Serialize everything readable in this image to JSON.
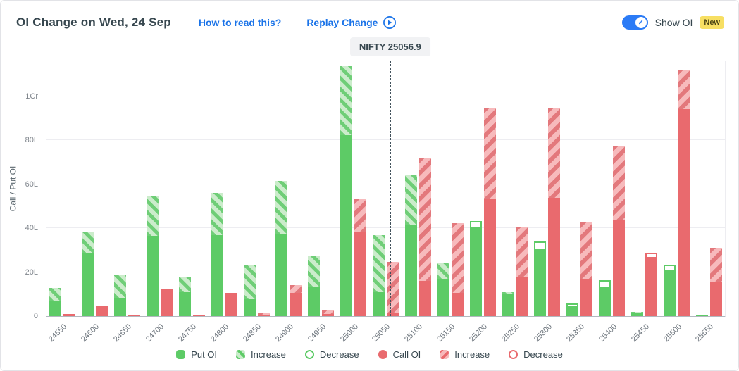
{
  "header": {
    "title": "OI Change on Wed, 24 Sep",
    "how_to_link": "How to read this?",
    "replay_label": "Replay Change",
    "show_oi_label": "Show OI",
    "new_badge": "New"
  },
  "colors": {
    "put_green": "#5dcb66",
    "put_green_light": "#cbeccb",
    "call_red": "#e96a6e",
    "call_red_light": "#f7babc",
    "link_blue": "#1a73e8",
    "toggle_blue": "#2b7bf6",
    "badge_yellow": "#f7df63",
    "grid_gray": "#ededf1"
  },
  "legend": {
    "items": [
      {
        "label": "Put OI",
        "swatch": "put-solid"
      },
      {
        "label": "Increase",
        "swatch": "put-inc"
      },
      {
        "label": "Decrease",
        "swatch": "put-dec"
      },
      {
        "label": "Call OI",
        "swatch": "call-solid"
      },
      {
        "label": "Increase",
        "swatch": "call-inc"
      },
      {
        "label": "Decrease",
        "swatch": "call-dec"
      }
    ]
  },
  "chart_data": {
    "type": "bar",
    "title": "OI Change on Wed, 24 Sep",
    "ylabel": "Call / Put OI",
    "unit": "lakh",
    "ylim": [
      0,
      116
    ],
    "grid": true,
    "y_ticks": [
      {
        "value": 0,
        "label": "0"
      },
      {
        "value": 20,
        "label": "20L"
      },
      {
        "value": 40,
        "label": "40L"
      },
      {
        "value": 60,
        "label": "60L"
      },
      {
        "value": 80,
        "label": "80L"
      },
      {
        "value": 100,
        "label": "1Cr"
      }
    ],
    "categories": [
      "24550",
      "24600",
      "24650",
      "24700",
      "24750",
      "24800",
      "24850",
      "24900",
      "24950",
      "25000",
      "25050",
      "25100",
      "25150",
      "25200",
      "25250",
      "25300",
      "25350",
      "25400",
      "25450",
      "25500",
      "25550"
    ],
    "series": [
      {
        "name": "Put OI",
        "solid": [
          6.7,
          28.5,
          8.3,
          36.5,
          11.0,
          37.0,
          7.7,
          37.5,
          13.5,
          82.4,
          10.9,
          41.7,
          16.7,
          40.0,
          10.3,
          30.0,
          4.2,
          12.5,
          1.2,
          20.5,
          0.8
        ],
        "change": [
          6.1,
          10.0,
          10.7,
          18.0,
          6.6,
          19.0,
          15.3,
          24.0,
          14.1,
          31.4,
          26.0,
          22.7,
          7.3,
          3.4,
          0.7,
          4.0,
          1.6,
          3.8,
          0.6,
          2.9,
          0
        ],
        "change_type": [
          "increase",
          "increase",
          "increase",
          "increase",
          "increase",
          "increase",
          "increase",
          "increase",
          "increase",
          "increase",
          "increase",
          "increase",
          "increase",
          "decrease",
          "increase",
          "decrease",
          "decrease",
          "decrease",
          "increase",
          "decrease",
          "none"
        ]
      },
      {
        "name": "Call OI",
        "solid": [
          1.0,
          4.5,
          0.5,
          12.5,
          0.8,
          10.5,
          0.6,
          10.6,
          1.0,
          38.1,
          1.3,
          16.0,
          10.5,
          53.5,
          18.0,
          54.0,
          17.1,
          44.0,
          26.3,
          94.2,
          15.4
        ],
        "change": [
          0,
          0,
          0,
          0,
          0,
          0,
          0.8,
          3.6,
          2.0,
          15.4,
          23.4,
          56.1,
          31.8,
          41.5,
          22.8,
          40.8,
          25.6,
          33.6,
          2.5,
          18.0,
          15.7
        ],
        "change_type": [
          "none",
          "none",
          "none",
          "none",
          "none",
          "none",
          "increase",
          "increase",
          "increase",
          "increase",
          "increase",
          "increase",
          "increase",
          "increase",
          "increase",
          "increase",
          "increase",
          "increase",
          "decrease",
          "increase",
          "increase"
        ]
      }
    ],
    "spot": {
      "label": "NIFTY 25056.9",
      "value": 25056.9,
      "first_strike": 24550,
      "strike_step": 50
    }
  }
}
